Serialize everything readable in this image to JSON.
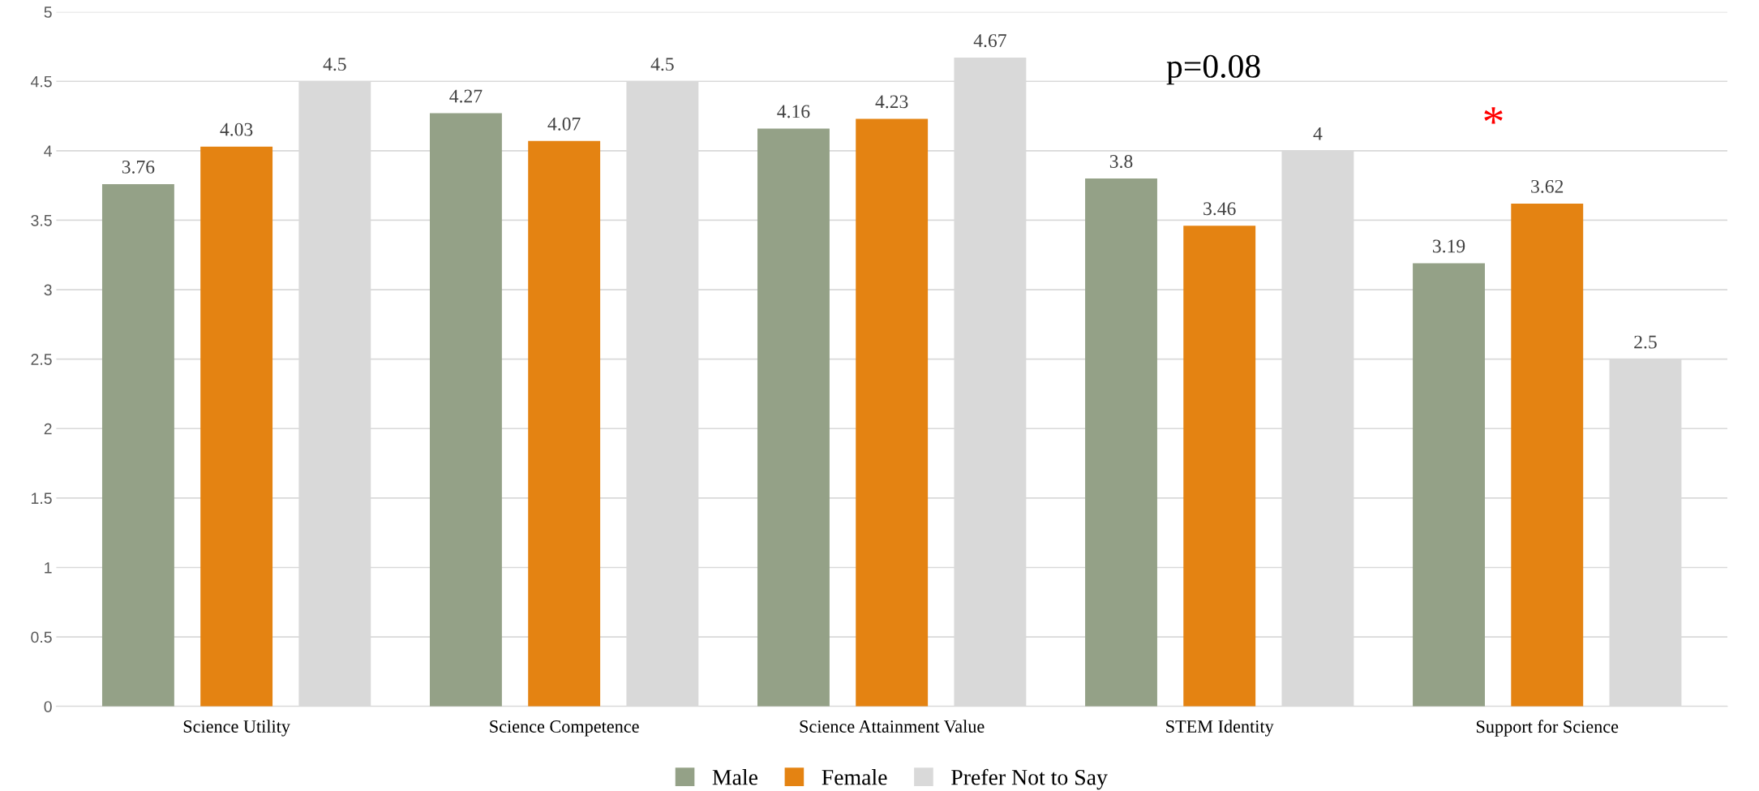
{
  "chart_data": {
    "type": "bar",
    "categories": [
      "Science Utility",
      "Science Competence",
      "Science Attainment Value",
      "STEM Identity",
      "Support for Science"
    ],
    "series": [
      {
        "name": "Male",
        "color": "#94a187",
        "values": [
          3.76,
          4.27,
          4.16,
          3.8,
          3.19
        ]
      },
      {
        "name": "Female",
        "color": "#e48312",
        "values": [
          4.03,
          4.07,
          4.23,
          3.46,
          3.62
        ]
      },
      {
        "name": "Prefer Not to Say",
        "color": "#d9d9d9",
        "values": [
          4.5,
          4.5,
          4.67,
          4,
          2.5
        ]
      }
    ],
    "ylim": [
      0,
      5
    ],
    "yticks": [
      0,
      0.5,
      1,
      1.5,
      2,
      2.5,
      3,
      3.5,
      4,
      4.5,
      5
    ],
    "grid": "y",
    "legend": "bottom",
    "data_labels": true,
    "annotations": [
      "p=0.08",
      "*"
    ]
  }
}
